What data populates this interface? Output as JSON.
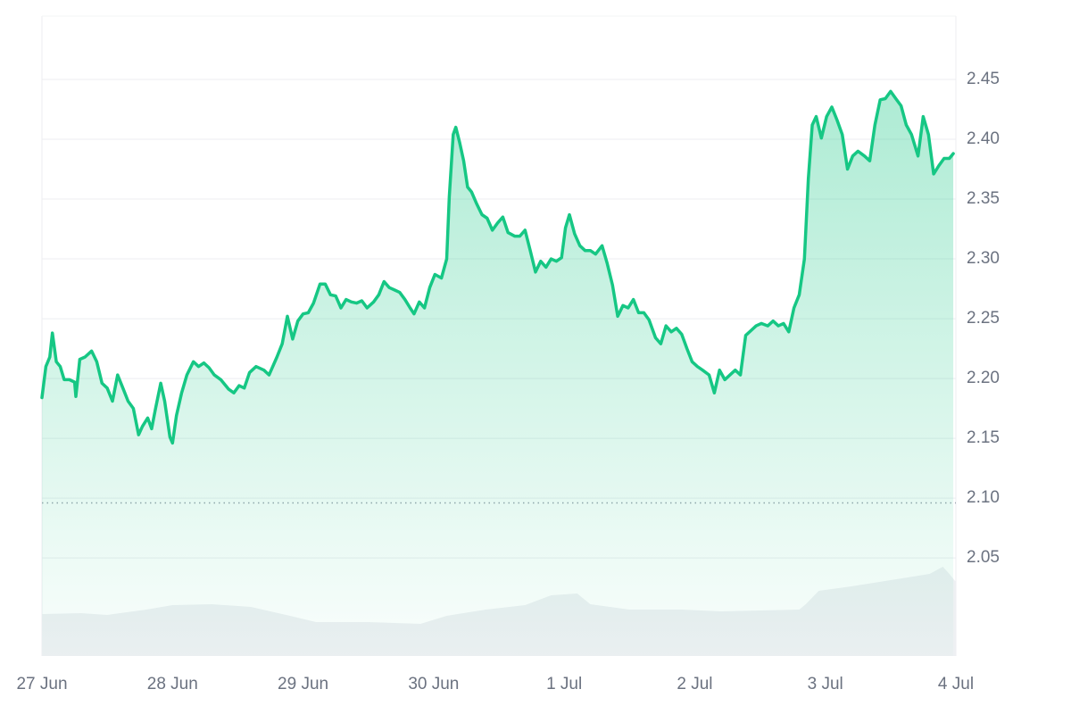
{
  "chart_data": {
    "type": "line",
    "xlim": [
      0,
      7
    ],
    "xticks": [
      {
        "value": 0,
        "label": "27 Jun"
      },
      {
        "value": 1,
        "label": "28 Jun"
      },
      {
        "value": 2,
        "label": "29 Jun"
      },
      {
        "value": 3,
        "label": "30 Jun"
      },
      {
        "value": 4,
        "label": "1 Jul"
      },
      {
        "value": 5,
        "label": "2 Jul"
      },
      {
        "value": 6,
        "label": "3 Jul"
      },
      {
        "value": 7,
        "label": "4 Jul"
      }
    ],
    "ylim": [
      1.968,
      2.503
    ],
    "yticks": [
      {
        "value": 2.05,
        "label": "2.05"
      },
      {
        "value": 2.1,
        "label": "2.10"
      },
      {
        "value": 2.15,
        "label": "2.15"
      },
      {
        "value": 2.2,
        "label": "2.20"
      },
      {
        "value": 2.25,
        "label": "2.25"
      },
      {
        "value": 2.3,
        "label": "2.30"
      },
      {
        "value": 2.35,
        "label": "2.35"
      },
      {
        "value": 2.4,
        "label": "2.40"
      },
      {
        "value": 2.45,
        "label": "2.45"
      }
    ],
    "grid": true,
    "reference_line": 2.096,
    "y2lim": [
      0,
      717
    ],
    "series": [
      {
        "color": "#16c784",
        "x": [
          0,
          0.03,
          0.06,
          0.08,
          0.11,
          0.14,
          0.17,
          0.21,
          0.25,
          0.26,
          0.29,
          0.33,
          0.38,
          0.42,
          0.46,
          0.5,
          0.54,
          0.58,
          0.62,
          0.66,
          0.7,
          0.74,
          0.77,
          0.81,
          0.84,
          0.87,
          0.91,
          0.94,
          0.98,
          1,
          1.03,
          1.07,
          1.11,
          1.16,
          1.2,
          1.24,
          1.28,
          1.32,
          1.37,
          1.43,
          1.47,
          1.51,
          1.55,
          1.59,
          1.64,
          1.7,
          1.74,
          1.8,
          1.84,
          1.88,
          1.92,
          1.96,
          2,
          2.04,
          2.08,
          2.13,
          2.17,
          2.21,
          2.25,
          2.29,
          2.33,
          2.37,
          2.41,
          2.45,
          2.49,
          2.54,
          2.58,
          2.62,
          2.66,
          2.7,
          2.74,
          2.78,
          2.82,
          2.85,
          2.89,
          2.93,
          2.97,
          3.01,
          3.06,
          3.1,
          3.12,
          3.15,
          3.17,
          3.2,
          3.23,
          3.26,
          3.29,
          3.33,
          3.37,
          3.41,
          3.45,
          3.49,
          3.53,
          3.57,
          3.62,
          3.66,
          3.7,
          3.74,
          3.78,
          3.82,
          3.86,
          3.9,
          3.94,
          3.98,
          4.01,
          4.04,
          4.08,
          4.12,
          4.16,
          4.2,
          4.24,
          4.29,
          4.33,
          4.37,
          4.41,
          4.45,
          4.49,
          4.53,
          4.57,
          4.61,
          4.65,
          4.7,
          4.74,
          4.78,
          4.82,
          4.86,
          4.9,
          4.94,
          4.98,
          5.02,
          5.06,
          5.11,
          5.15,
          5.19,
          5.23,
          5.27,
          5.31,
          5.35,
          5.39,
          5.43,
          5.47,
          5.51,
          5.56,
          5.6,
          5.64,
          5.68,
          5.72,
          5.76,
          5.8,
          5.84,
          5.87,
          5.9,
          5.93,
          5.97,
          6.01,
          6.05,
          6.09,
          6.13,
          6.17,
          6.21,
          6.25,
          6.3,
          6.34,
          6.38,
          6.42,
          6.46,
          6.5,
          6.54,
          6.58,
          6.62,
          6.66,
          6.71,
          6.75,
          6.79,
          6.83,
          6.87,
          6.91,
          6.95,
          6.98
        ],
        "values": [
          2.184,
          2.21,
          2.218,
          2.238,
          2.214,
          2.21,
          2.199,
          2.199,
          2.197,
          2.185,
          2.216,
          2.218,
          2.223,
          2.214,
          2.196,
          2.192,
          2.181,
          2.203,
          2.192,
          2.181,
          2.175,
          2.153,
          2.16,
          2.167,
          2.158,
          2.175,
          2.196,
          2.181,
          2.151,
          2.146,
          2.169,
          2.188,
          2.203,
          2.214,
          2.21,
          2.213,
          2.209,
          2.203,
          2.199,
          2.191,
          2.188,
          2.194,
          2.192,
          2.205,
          2.21,
          2.207,
          2.203,
          2.218,
          2.229,
          2.252,
          2.233,
          2.248,
          2.254,
          2.255,
          2.263,
          2.279,
          2.279,
          2.27,
          2.269,
          2.259,
          2.266,
          2.264,
          2.263,
          2.265,
          2.259,
          2.264,
          2.27,
          2.281,
          2.276,
          2.274,
          2.272,
          2.266,
          2.259,
          2.254,
          2.264,
          2.259,
          2.276,
          2.287,
          2.284,
          2.3,
          2.352,
          2.404,
          2.41,
          2.397,
          2.382,
          2.36,
          2.356,
          2.346,
          2.337,
          2.334,
          2.324,
          2.33,
          2.335,
          2.322,
          2.319,
          2.319,
          2.324,
          2.307,
          2.289,
          2.298,
          2.293,
          2.3,
          2.298,
          2.301,
          2.326,
          2.337,
          2.321,
          2.311,
          2.307,
          2.307,
          2.304,
          2.311,
          2.296,
          2.278,
          2.252,
          2.261,
          2.259,
          2.266,
          2.255,
          2.255,
          2.249,
          2.234,
          2.229,
          2.244,
          2.239,
          2.242,
          2.237,
          2.225,
          2.214,
          2.21,
          2.207,
          2.203,
          2.188,
          2.207,
          2.199,
          2.203,
          2.207,
          2.203,
          2.236,
          2.24,
          2.244,
          2.246,
          2.244,
          2.248,
          2.244,
          2.246,
          2.239,
          2.259,
          2.27,
          2.3,
          2.367,
          2.412,
          2.419,
          2.401,
          2.419,
          2.427,
          2.416,
          2.404,
          2.375,
          2.386,
          2.39,
          2.386,
          2.382,
          2.412,
          2.433,
          2.434,
          2.44,
          2.434,
          2.428,
          2.412,
          2.404,
          2.386,
          2.419,
          2.404,
          2.371,
          2.378,
          2.384,
          2.384,
          2.388
        ]
      },
      {
        "color": "#eef0f3",
        "axis": "y2",
        "x": [
          0,
          0.3,
          0.5,
          0.8,
          1,
          1.3,
          1.6,
          1.9,
          2.1,
          2.5,
          2.9,
          3.1,
          3.4,
          3.7,
          3.9,
          4.1,
          4.2,
          4.5,
          4.9,
          5.2,
          5.8,
          5.85,
          5.95,
          6.2,
          6.5,
          6.8,
          6.9,
          6.95,
          7
        ],
        "values": [
          47,
          48,
          46,
          52,
          57,
          58,
          55,
          45,
          38,
          38,
          36,
          45,
          52,
          57,
          68,
          70,
          58,
          52,
          52,
          50,
          52,
          58,
          73,
          78,
          85,
          92,
          100,
          92,
          83
        ]
      }
    ]
  }
}
